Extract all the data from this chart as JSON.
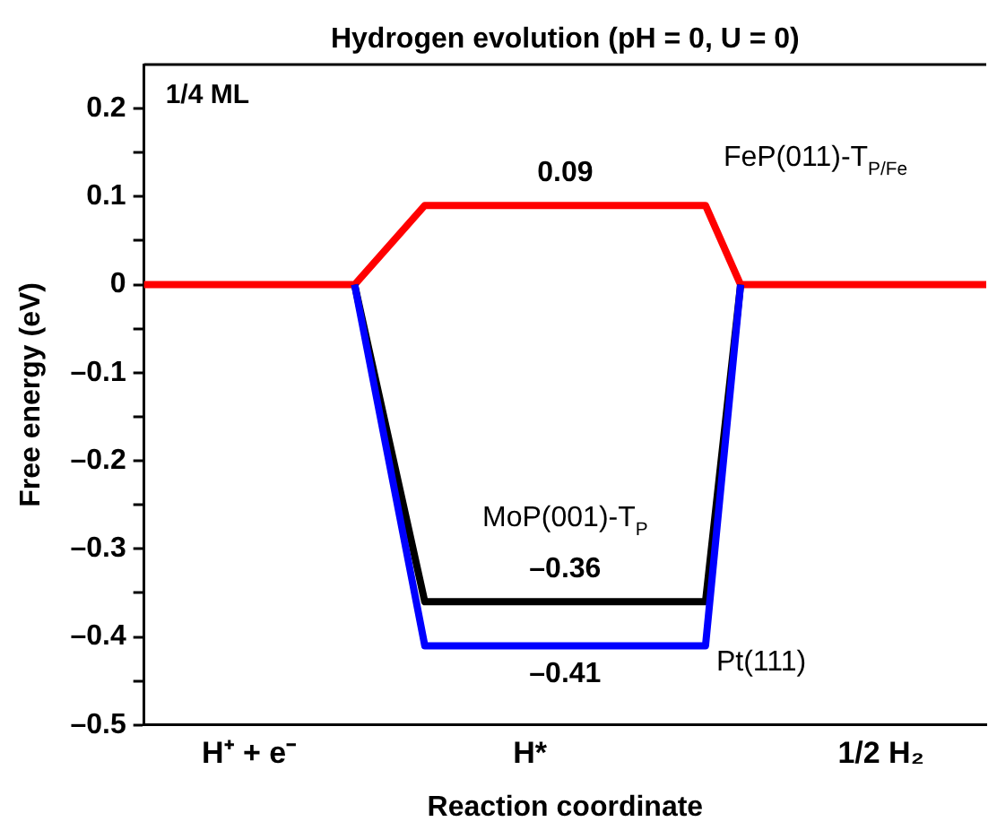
{
  "chart_data": {
    "type": "line",
    "title": "Hydrogen evolution (pH = 0, U = 0)",
    "xlabel": "Reaction coordinate",
    "ylabel": "Free energy (eV)",
    "categories": [
      null,
      null,
      null,
      "H⁺ + e⁻",
      null,
      null,
      null,
      null,
      null,
      null,
      null,
      "H*",
      null,
      null,
      null,
      null,
      null,
      null,
      null,
      null,
      null,
      "1/2 H₂",
      null,
      null,
      null
    ],
    "ylim": [
      -0.5,
      0.25
    ],
    "yticks": [
      {
        "value": -0.5,
        "label": "–0.5"
      },
      {
        "value": -0.45,
        "label": null
      },
      {
        "value": -0.4,
        "label": "–0.4"
      },
      {
        "value": -0.35,
        "label": null
      },
      {
        "value": -0.3,
        "label": "–0.3"
      },
      {
        "value": -0.25,
        "label": null
      },
      {
        "value": -0.2,
        "label": "–0.2"
      },
      {
        "value": -0.15,
        "label": null
      },
      {
        "value": -0.1,
        "label": "–0.1"
      },
      {
        "value": -0.05,
        "label": null
      },
      {
        "value": 0,
        "label": "0"
      },
      {
        "value": 0.05,
        "label": null
      },
      {
        "value": 0.1,
        "label": "0.1"
      },
      {
        "value": 0.15,
        "label": null
      },
      {
        "value": 0.2,
        "label": "0.2"
      }
    ],
    "series": [
      {
        "name": "Pt(111)",
        "color": "#0000ff",
        "values": [
          null,
          null,
          null,
          null,
          null,
          null,
          0,
          null,
          -0.41,
          null,
          null,
          null,
          -0.41,
          null,
          null,
          null,
          -0.41,
          0,
          null,
          null,
          null,
          null,
          null,
          null,
          null
        ],
        "value_labels": [
          null,
          null,
          null,
          null,
          null,
          null,
          null,
          null,
          null,
          null,
          null,
          null,
          "–0.41",
          null,
          null,
          null,
          null,
          null,
          null,
          null,
          null,
          null,
          null,
          null,
          null
        ]
      },
      {
        "name": "MoP(001)-T$_{P}$",
        "color": "#000000",
        "values": [
          null,
          null,
          null,
          null,
          null,
          null,
          0,
          null,
          -0.36,
          null,
          null,
          null,
          -0.36,
          null,
          null,
          null,
          -0.36,
          0,
          null,
          null,
          null,
          null,
          null,
          null,
          null
        ],
        "value_labels": [
          null,
          null,
          null,
          null,
          null,
          null,
          null,
          null,
          null,
          null,
          null,
          null,
          "–0.36",
          null,
          null,
          null,
          null,
          null,
          null,
          null,
          null,
          null,
          null,
          null,
          null
        ]
      },
      {
        "name": "FeP(011)-T$_{P/Fe}$",
        "color": "#ff0000",
        "values": [
          0,
          null,
          null,
          null,
          null,
          null,
          0,
          null,
          0.09,
          null,
          null,
          null,
          0.09,
          null,
          null,
          null,
          0.09,
          0,
          null,
          null,
          null,
          null,
          null,
          null,
          0
        ],
        "value_labels": [
          null,
          null,
          null,
          null,
          null,
          null,
          null,
          null,
          null,
          null,
          null,
          null,
          "0.09",
          null,
          null,
          null,
          null,
          null,
          null,
          null,
          null,
          null,
          null,
          null,
          null
        ]
      }
    ],
    "annotations": [
      "1/4 ML"
    ],
    "grid": false,
    "legend": false,
    "marker": "none",
    "line_style": "solid"
  }
}
